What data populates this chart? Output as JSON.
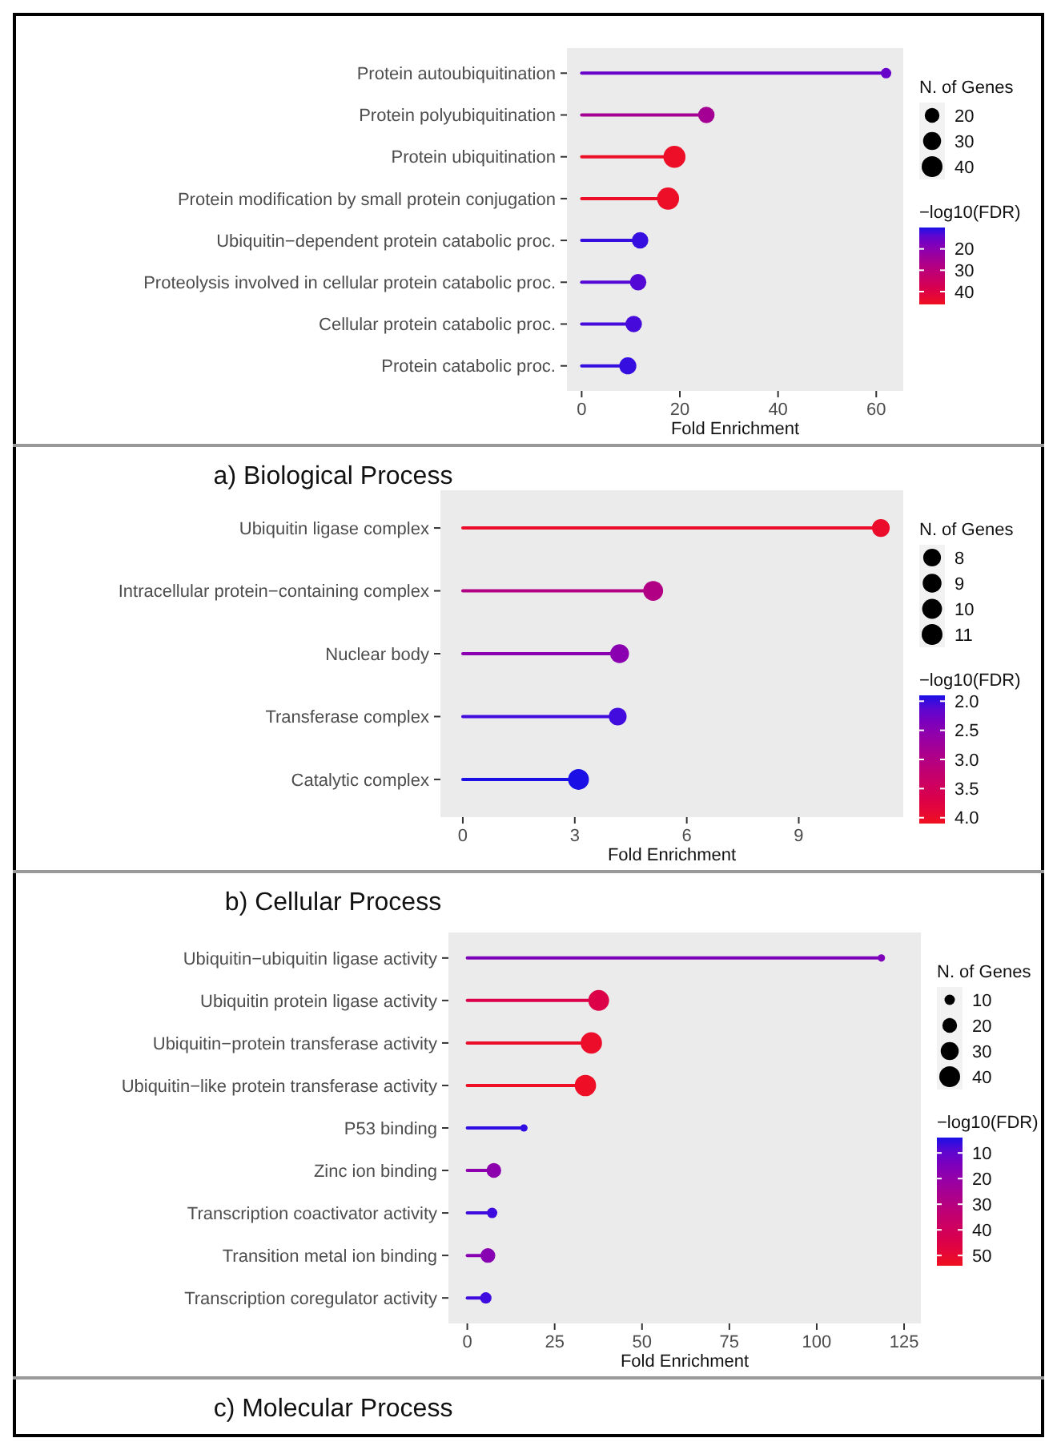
{
  "chart_data": [
    {
      "type": "lollipop",
      "orientation": "horizontal",
      "title": "a) Biological Process",
      "xlabel": "Fold Enrichment",
      "legend_title": "N. of Genes",
      "clabel": "−log10(FDR)",
      "marker": "circle",
      "categories": [
        "Protein autoubiquitination",
        "Protein polyubiquitination",
        "Protein ubiquitination",
        "Protein modification by small protein conjugation",
        "Ubiquitin−dependent protein catabolic proc.",
        "Proteolysis involved in cellular protein catabolic proc.",
        "Cellular protein catabolic proc.",
        "Protein catabolic proc."
      ],
      "values": [
        62,
        25.4,
        18.9,
        17.6,
        11.9,
        11.5,
        10.6,
        9.4
      ],
      "sizes": [
        10,
        25,
        45,
        45,
        25,
        25,
        25,
        27
      ],
      "size_legend": [
        20,
        30,
        40
      ],
      "cvalues": [
        15,
        25,
        45,
        45,
        11,
        13,
        12,
        11
      ],
      "clim": [
        10,
        46
      ],
      "cticks": [
        20,
        30,
        40
      ],
      "xlim": [
        -3,
        65.5
      ],
      "xticks": [
        0,
        20,
        40,
        60
      ]
    },
    {
      "type": "lollipop",
      "orientation": "horizontal",
      "title": "b) Cellular Process",
      "xlabel": "Fold Enrichment",
      "legend_title": "N. of Genes",
      "clabel": "−log10(FDR)",
      "marker": "circle",
      "categories": [
        "Ubiquitin ligase complex",
        "Intracellular protein−containing complex",
        "Nuclear body",
        "Transferase complex",
        "Catalytic complex"
      ],
      "values": [
        11.2,
        5.1,
        4.2,
        4.15,
        3.1
      ],
      "sizes": [
        8,
        10,
        9,
        8,
        11
      ],
      "size_legend": [
        8,
        9,
        10,
        11
      ],
      "cvalues": [
        4.0,
        3.0,
        2.5,
        2.0,
        1.9
      ],
      "clim": [
        1.9,
        4.1
      ],
      "cticks": [
        {
          "value": 2,
          "label": "2.0"
        },
        {
          "value": 2.5,
          "label": "2.5"
        },
        {
          "value": 3,
          "label": "3.0"
        },
        {
          "value": 3.5,
          "label": "3.5"
        },
        {
          "value": 4,
          "label": "4.0"
        }
      ],
      "xlim": [
        -0.6,
        11.8
      ],
      "xticks": [
        0,
        3,
        6,
        9
      ]
    },
    {
      "type": "lollipop",
      "orientation": "horizontal",
      "title": "c) Molecular Process",
      "xlabel": "Fold Enrichment",
      "legend_title": "N. of Genes",
      "clabel": "−log10(FDR)",
      "marker": "circle",
      "categories": [
        "Ubiquitin−ubiquitin ligase activity",
        "Ubiquitin protein ligase activity",
        "Ubiquitin−protein transferase activity",
        "Ubiquitin−like protein transferase activity",
        "P53 binding",
        "Zinc ion binding",
        "Transcription coactivator activity",
        "Transition metal ion binding",
        "Transcription coregulator activity"
      ],
      "values": [
        118.5,
        37.6,
        35.5,
        33.8,
        16.2,
        7.6,
        7.1,
        5.9,
        5.3
      ],
      "sizes": [
        5,
        40,
        42,
        42,
        5,
        20,
        10,
        20,
        12
      ],
      "size_legend": [
        10,
        20,
        30,
        40
      ],
      "cvalues": [
        15,
        45,
        52,
        53,
        5,
        18,
        6,
        17,
        6
      ],
      "clim": [
        4,
        54
      ],
      "cticks": [
        10,
        20,
        30,
        40,
        50
      ],
      "xlim": [
        -5.4,
        129.8
      ],
      "xticks": [
        0,
        25,
        50,
        75,
        100,
        125
      ]
    }
  ]
}
